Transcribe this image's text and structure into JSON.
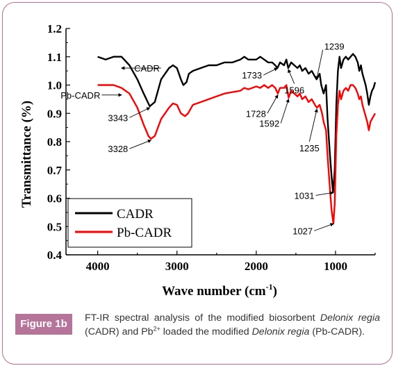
{
  "chart_data": {
    "type": "line",
    "xlabel": "Wave number (cm",
    "xlabel_sup": "-1",
    "xlabel_close": ")",
    "ylabel": "Transmittance (%)",
    "xlim": [
      4400,
      500
    ],
    "ylim": [
      0.4,
      1.2
    ],
    "x_reversed": true,
    "x_ticks": [
      4000,
      3000,
      2000,
      1000
    ],
    "y_ticks": [
      0.4,
      0.5,
      0.6,
      0.7,
      0.8,
      0.9,
      1.0,
      1.1,
      1.2
    ],
    "y_tick_labels": [
      "0.4",
      "0.5",
      "0.6",
      "0.7",
      "0.8",
      "0.9",
      "1.0",
      "1.1",
      "1.2"
    ],
    "grid": false,
    "legend": "bottom-left",
    "series": [
      {
        "name": "CADR",
        "color": "#000000",
        "points": [
          [
            4000,
            1.1
          ],
          [
            3900,
            1.09
          ],
          [
            3800,
            1.1
          ],
          [
            3700,
            1.1
          ],
          [
            3600,
            1.07
          ],
          [
            3500,
            1.02
          ],
          [
            3420,
            0.97
          ],
          [
            3343,
            0.925
          ],
          [
            3280,
            0.94
          ],
          [
            3200,
            1.02
          ],
          [
            3100,
            1.06
          ],
          [
            3050,
            1.07
          ],
          [
            3000,
            1.06
          ],
          [
            2950,
            1.02
          ],
          [
            2920,
            1.0
          ],
          [
            2880,
            1.01
          ],
          [
            2850,
            1.04
          ],
          [
            2800,
            1.05
          ],
          [
            2700,
            1.06
          ],
          [
            2600,
            1.07
          ],
          [
            2500,
            1.07
          ],
          [
            2400,
            1.08
          ],
          [
            2300,
            1.08
          ],
          [
            2200,
            1.09
          ],
          [
            2150,
            1.1
          ],
          [
            2100,
            1.09
          ],
          [
            2050,
            1.09
          ],
          [
            2000,
            1.09
          ],
          [
            1950,
            1.1
          ],
          [
            1900,
            1.09
          ],
          [
            1850,
            1.08
          ],
          [
            1800,
            1.08
          ],
          [
            1760,
            1.07
          ],
          [
            1733,
            1.06
          ],
          [
            1700,
            1.08
          ],
          [
            1650,
            1.07
          ],
          [
            1620,
            1.09
          ],
          [
            1596,
            1.06
          ],
          [
            1560,
            1.08
          ],
          [
            1520,
            1.07
          ],
          [
            1480,
            1.06
          ],
          [
            1450,
            1.07
          ],
          [
            1420,
            1.05
          ],
          [
            1380,
            1.06
          ],
          [
            1340,
            1.04
          ],
          [
            1300,
            1.05
          ],
          [
            1260,
            1.03
          ],
          [
            1239,
            1.02
          ],
          [
            1200,
            1.04
          ],
          [
            1180,
            1.0
          ],
          [
            1150,
            0.97
          ],
          [
            1120,
            1.0
          ],
          [
            1100,
            0.88
          ],
          [
            1070,
            0.75
          ],
          [
            1050,
            0.68
          ],
          [
            1031,
            0.62
          ],
          [
            1010,
            0.7
          ],
          [
            990,
            0.93
          ],
          [
            970,
            1.05
          ],
          [
            950,
            1.1
          ],
          [
            930,
            1.06
          ],
          [
            900,
            1.09
          ],
          [
            870,
            1.1
          ],
          [
            840,
            1.09
          ],
          [
            810,
            1.1
          ],
          [
            780,
            1.11
          ],
          [
            750,
            1.1
          ],
          [
            720,
            1.08
          ],
          [
            700,
            1.05
          ],
          [
            680,
            1.07
          ],
          [
            660,
            1.04
          ],
          [
            640,
            1.02
          ],
          [
            620,
            1.0
          ],
          [
            600,
            0.97
          ],
          [
            580,
            0.93
          ],
          [
            560,
            0.96
          ],
          [
            540,
            0.98
          ],
          [
            520,
            0.99
          ],
          [
            500,
            1.01
          ]
        ]
      },
      {
        "name": "Pb-CADR",
        "color": "#ff0000",
        "points": [
          [
            4000,
            1.0
          ],
          [
            3900,
            1.0
          ],
          [
            3800,
            1.0
          ],
          [
            3700,
            0.99
          ],
          [
            3600,
            0.97
          ],
          [
            3500,
            0.92
          ],
          [
            3420,
            0.86
          ],
          [
            3360,
            0.82
          ],
          [
            3328,
            0.81
          ],
          [
            3280,
            0.82
          ],
          [
            3200,
            0.88
          ],
          [
            3100,
            0.92
          ],
          [
            3050,
            0.935
          ],
          [
            3000,
            0.93
          ],
          [
            2950,
            0.9
          ],
          [
            2900,
            0.89
          ],
          [
            2860,
            0.9
          ],
          [
            2800,
            0.93
          ],
          [
            2700,
            0.94
          ],
          [
            2600,
            0.95
          ],
          [
            2500,
            0.96
          ],
          [
            2400,
            0.97
          ],
          [
            2300,
            0.975
          ],
          [
            2200,
            0.98
          ],
          [
            2150,
            0.99
          ],
          [
            2100,
            0.985
          ],
          [
            2050,
            0.99
          ],
          [
            2000,
            0.995
          ],
          [
            1950,
            0.99
          ],
          [
            1900,
            1.0
          ],
          [
            1850,
            0.99
          ],
          [
            1800,
            1.0
          ],
          [
            1760,
            0.99
          ],
          [
            1728,
            0.97
          ],
          [
            1700,
            0.99
          ],
          [
            1650,
            0.99
          ],
          [
            1620,
            1.0
          ],
          [
            1592,
            0.955
          ],
          [
            1560,
            0.98
          ],
          [
            1520,
            0.97
          ],
          [
            1480,
            0.96
          ],
          [
            1450,
            0.97
          ],
          [
            1420,
            0.95
          ],
          [
            1380,
            0.96
          ],
          [
            1340,
            0.94
          ],
          [
            1300,
            0.95
          ],
          [
            1260,
            0.93
          ],
          [
            1235,
            0.92
          ],
          [
            1200,
            0.93
          ],
          [
            1170,
            0.9
          ],
          [
            1150,
            0.87
          ],
          [
            1120,
            0.84
          ],
          [
            1100,
            0.75
          ],
          [
            1070,
            0.63
          ],
          [
            1050,
            0.56
          ],
          [
            1027,
            0.51
          ],
          [
            1010,
            0.58
          ],
          [
            990,
            0.82
          ],
          [
            970,
            0.93
          ],
          [
            950,
            0.98
          ],
          [
            930,
            0.95
          ],
          [
            900,
            0.98
          ],
          [
            870,
            0.99
          ],
          [
            840,
            0.98
          ],
          [
            810,
            1.0
          ],
          [
            780,
            1.0
          ],
          [
            750,
            0.99
          ],
          [
            720,
            0.97
          ],
          [
            700,
            0.95
          ],
          [
            680,
            0.96
          ],
          [
            660,
            0.93
          ],
          [
            640,
            0.91
          ],
          [
            620,
            0.89
          ],
          [
            600,
            0.87
          ],
          [
            580,
            0.84
          ],
          [
            560,
            0.87
          ],
          [
            540,
            0.88
          ],
          [
            520,
            0.89
          ],
          [
            500,
            0.9
          ]
        ]
      }
    ],
    "annotations": [
      {
        "text": "CADR",
        "x": 3700,
        "y": 1.06,
        "tx": 3200,
        "ty": 1.06,
        "align": "end"
      },
      {
        "text": "Pb-CADR",
        "x": 3700,
        "y": 0.965,
        "tx": 3950,
        "ty": 0.965,
        "align": "end"
      },
      {
        "text": "3343",
        "x": 3343,
        "y": 0.92,
        "tx": 3600,
        "ty": 0.885,
        "align": "end"
      },
      {
        "text": "3328",
        "x": 3328,
        "y": 0.805,
        "tx": 3600,
        "ty": 0.775,
        "align": "end"
      },
      {
        "text": "1733",
        "x": 1733,
        "y": 1.06,
        "tx": 1910,
        "ty": 1.035,
        "align": "end"
      },
      {
        "text": "1596",
        "x": 1596,
        "y": 1.055,
        "tx": 1520,
        "ty": 1.005,
        "align": "middle"
      },
      {
        "text": "1728",
        "x": 1728,
        "y": 0.965,
        "tx": 1860,
        "ty": 0.9,
        "align": "end"
      },
      {
        "text": "1592",
        "x": 1592,
        "y": 0.95,
        "tx": 1690,
        "ty": 0.865,
        "align": "end"
      },
      {
        "text": "1239",
        "x": 1239,
        "y": 1.02,
        "tx": 1160,
        "ty": 1.125,
        "align": "start"
      },
      {
        "text": "1235",
        "x": 1235,
        "y": 0.915,
        "tx": 1330,
        "ty": 0.8,
        "align": "middle"
      },
      {
        "text": "1031",
        "x": 1031,
        "y": 0.62,
        "tx": 1250,
        "ty": 0.61,
        "align": "end"
      },
      {
        "text": "1027",
        "x": 1027,
        "y": 0.51,
        "tx": 1270,
        "ty": 0.485,
        "align": "end"
      }
    ]
  },
  "caption": {
    "badge": "Figure 1b",
    "line1": "FT-IR spectral analysis of the modified biosorbent",
    "species": "Delonix regia",
    "mid": " (CADR) and Pb",
    "superscript": "2+",
    "after": " loaded  the modified",
    "species2": "Delonix regia",
    "tail": " (Pb-CADR)."
  }
}
